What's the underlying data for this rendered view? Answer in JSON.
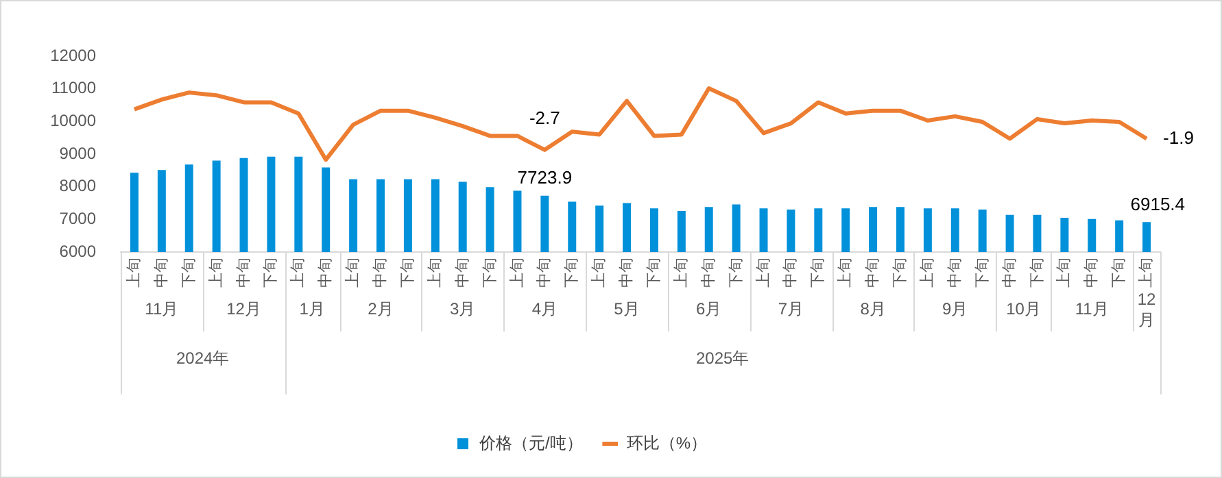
{
  "chart_data": {
    "type": "bar",
    "categories": [
      "上旬",
      "中旬",
      "下旬",
      "上旬",
      "中旬",
      "下旬",
      "上旬",
      "中旬",
      "上旬",
      "中旬",
      "下旬",
      "上旬",
      "中旬",
      "下旬",
      "上旬",
      "中旬",
      "下旬",
      "上旬",
      "中旬",
      "下旬",
      "上旬",
      "中旬",
      "下旬",
      "上旬",
      "中旬",
      "下旬",
      "上旬",
      "中旬",
      "下旬",
      "上旬",
      "中旬",
      "下旬",
      "中旬",
      "下旬",
      "上旬",
      "中旬",
      "下旬",
      "上旬"
    ],
    "series": [
      {
        "name": "价格（元/吨）",
        "color": "#0091da",
        "values": [
          8430,
          8510,
          8680,
          8800,
          8880,
          8920,
          8920,
          8590,
          8230,
          8230,
          8230,
          8230,
          8150,
          7990,
          7880,
          7723.9,
          7540,
          7420,
          7500,
          7340,
          7260,
          7380,
          7460,
          7340,
          7300,
          7340,
          7340,
          7380,
          7380,
          7340,
          7340,
          7300,
          7140,
          7140,
          7050,
          7010,
          6970,
          6915.4
        ],
        "value_labels": [
          null,
          null,
          null,
          null,
          null,
          null,
          null,
          null,
          null,
          null,
          null,
          null,
          null,
          null,
          null,
          "7723.9",
          null,
          null,
          null,
          null,
          null,
          null,
          null,
          null,
          null,
          null,
          null,
          null,
          null,
          null,
          null,
          null,
          null,
          null,
          null,
          null,
          null,
          "6915.4"
        ]
      },
      {
        "name": "环比（%）",
        "type": "line",
        "axis": "y2",
        "color": "#ed7d31",
        "values": [
          0.2,
          0.9,
          1.4,
          1.2,
          0.7,
          0.7,
          -0.1,
          -3.4,
          -0.9,
          0.1,
          0.1,
          -0.4,
          -1.0,
          -1.7,
          -1.7,
          -2.7,
          -1.4,
          -1.6,
          0.8,
          -1.7,
          -1.6,
          1.7,
          0.8,
          -1.5,
          -0.8,
          0.7,
          -0.1,
          0.1,
          0.1,
          -0.6,
          -0.3,
          -0.7,
          -1.9,
          -0.5,
          -0.8,
          -0.6,
          -0.7,
          -1.9
        ],
        "value_labels": [
          null,
          null,
          null,
          null,
          null,
          null,
          null,
          null,
          null,
          null,
          null,
          null,
          null,
          null,
          null,
          "-2.7",
          null,
          null,
          null,
          null,
          null,
          null,
          null,
          null,
          null,
          null,
          null,
          null,
          null,
          null,
          null,
          null,
          null,
          null,
          null,
          null,
          null,
          "-1.9"
        ]
      }
    ],
    "ylim": [
      6000,
      12000
    ],
    "yticks": [
      6000,
      7000,
      8000,
      9000,
      10000,
      11000,
      12000
    ],
    "annotations": [
      "11月",
      "12月",
      "1月",
      "2月",
      "3月",
      "4月",
      "5月",
      "6月",
      "7月",
      "8月",
      "9月",
      "10月",
      "11月",
      "12月",
      "2024年",
      "2025年"
    ],
    "legend": "bottom",
    "grid": false,
    "marker": "none",
    "line_style": "solid"
  }
}
